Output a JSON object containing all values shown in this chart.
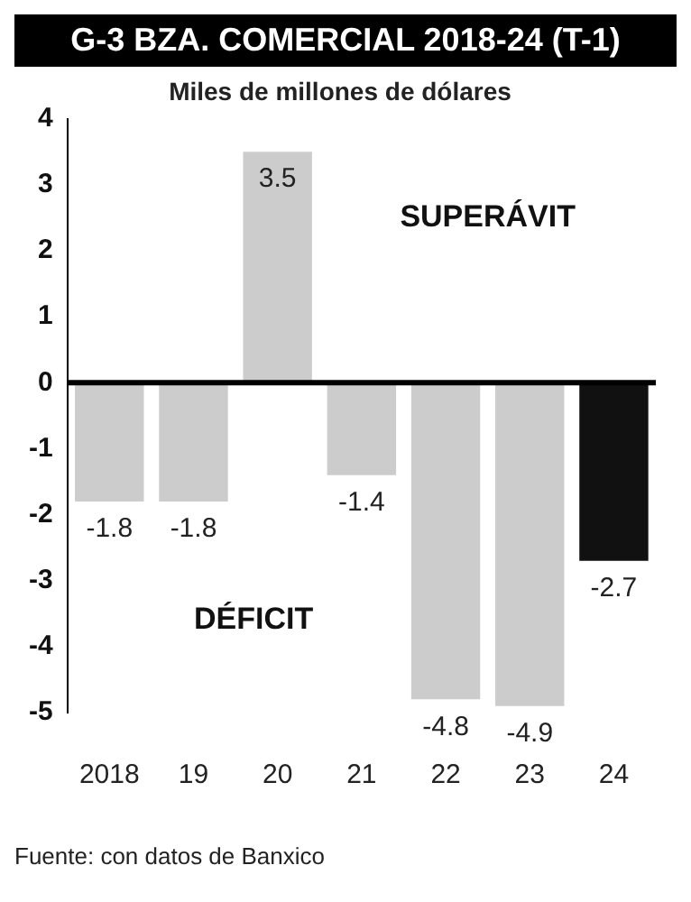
{
  "chart_data": {
    "type": "bar",
    "title": "G-3 BZA. COMERCIAL 2018-24 (T-1)",
    "subtitle": "Miles de millones de dólares",
    "categories": [
      "2018",
      "19",
      "20",
      "21",
      "22",
      "23",
      "24"
    ],
    "values": [
      -1.8,
      -1.8,
      3.5,
      -1.4,
      -4.8,
      -4.9,
      -2.7
    ],
    "colors": [
      "#cccccc",
      "#cccccc",
      "#cccccc",
      "#cccccc",
      "#cccccc",
      "#cccccc",
      "#111111"
    ],
    "ylim": [
      -5,
      4
    ],
    "yticks": [
      -5,
      -4,
      -3,
      -2,
      -1,
      0,
      1,
      2,
      3,
      4
    ],
    "grid": false,
    "legend": false,
    "data_labels": true,
    "ref_lines": [
      {
        "axis": "y",
        "value": 0,
        "color": "#000000"
      }
    ],
    "annotations": [
      "SUPERÁVIT",
      "DÉFICIT",
      "Fuente: con datos de Banxico"
    ]
  }
}
